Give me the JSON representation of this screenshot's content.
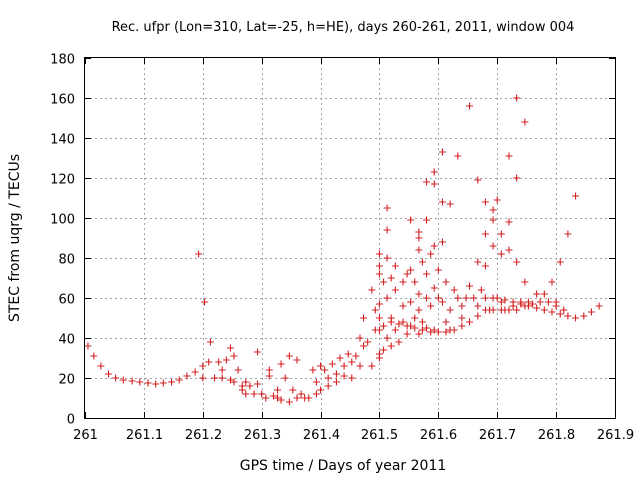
{
  "chart_data": {
    "type": "scatter",
    "title": "Rec. ufpr (Lon=310, Lat=-25, h=HE), days 260-261, 2011, window 004",
    "xlabel": "GPS time / Days of year 2011",
    "ylabel": "STEC from uqrg / TECUs",
    "xlim": [
      261,
      261.9
    ],
    "ylim": [
      0,
      180
    ],
    "xticks": [
      261,
      261.1,
      261.2,
      261.3,
      261.4,
      261.5,
      261.6,
      261.7,
      261.8,
      261.9
    ],
    "xtick_labels": [
      "261",
      "261.1",
      "261.2",
      "261.3",
      "261.4",
      "261.5",
      "261.6",
      "261.7",
      "261.8",
      "261.9"
    ],
    "yticks": [
      0,
      20,
      40,
      60,
      80,
      100,
      120,
      140,
      160,
      180
    ],
    "ytick_labels": [
      "0",
      "20",
      "40",
      "60",
      "80",
      "100",
      "120",
      "140",
      "160",
      "180"
    ],
    "grid": true,
    "marker": "+",
    "color": "#d42020",
    "points": [
      [
        261.005,
        36
      ],
      [
        261.015,
        31
      ],
      [
        261.027,
        26
      ],
      [
        261.04,
        22
      ],
      [
        261.052,
        20
      ],
      [
        261.065,
        19
      ],
      [
        261.08,
        18.5
      ],
      [
        261.093,
        18
      ],
      [
        261.107,
        17.5
      ],
      [
        261.12,
        17
      ],
      [
        261.133,
        17.5
      ],
      [
        261.147,
        18
      ],
      [
        261.16,
        19
      ],
      [
        261.173,
        21
      ],
      [
        261.187,
        23
      ],
      [
        261.193,
        82
      ],
      [
        261.203,
        58
      ],
      [
        261.2,
        26
      ],
      [
        261.2,
        20
      ],
      [
        261.21,
        28
      ],
      [
        261.213,
        38
      ],
      [
        261.22,
        20
      ],
      [
        261.227,
        28
      ],
      [
        261.233,
        24
      ],
      [
        261.233,
        20
      ],
      [
        261.24,
        29
      ],
      [
        261.247,
        35
      ],
      [
        261.247,
        19
      ],
      [
        261.253,
        31
      ],
      [
        261.253,
        18
      ],
      [
        261.26,
        24
      ],
      [
        261.267,
        16
      ],
      [
        261.267,
        14
      ],
      [
        261.273,
        18
      ],
      [
        261.273,
        12
      ],
      [
        261.28,
        16
      ],
      [
        261.287,
        12
      ],
      [
        261.293,
        33
      ],
      [
        261.293,
        17
      ],
      [
        261.3,
        12
      ],
      [
        261.307,
        10
      ],
      [
        261.313,
        24
      ],
      [
        261.313,
        21
      ],
      [
        261.32,
        11
      ],
      [
        261.327,
        14
      ],
      [
        261.327,
        10
      ],
      [
        261.333,
        27
      ],
      [
        261.333,
        9
      ],
      [
        261.34,
        20
      ],
      [
        261.347,
        31
      ],
      [
        261.347,
        8
      ],
      [
        261.353,
        14
      ],
      [
        261.36,
        29
      ],
      [
        261.36,
        10
      ],
      [
        261.367,
        12
      ],
      [
        261.373,
        10
      ],
      [
        261.38,
        10
      ],
      [
        261.387,
        24
      ],
      [
        261.393,
        12
      ],
      [
        261.393,
        18
      ],
      [
        261.4,
        26
      ],
      [
        261.4,
        14
      ],
      [
        261.407,
        24
      ],
      [
        261.413,
        20
      ],
      [
        261.413,
        16
      ],
      [
        261.42,
        27
      ],
      [
        261.427,
        22
      ],
      [
        261.427,
        18
      ],
      [
        261.433,
        30
      ],
      [
        261.44,
        26
      ],
      [
        261.44,
        21
      ],
      [
        261.447,
        32
      ],
      [
        261.453,
        28
      ],
      [
        261.453,
        20
      ],
      [
        261.46,
        31
      ],
      [
        261.467,
        40
      ],
      [
        261.467,
        26
      ],
      [
        261.473,
        50
      ],
      [
        261.473,
        36
      ],
      [
        261.48,
        38
      ],
      [
        261.487,
        26
      ],
      [
        261.487,
        64
      ],
      [
        261.493,
        54
      ],
      [
        261.493,
        44
      ],
      [
        261.5,
        82
      ],
      [
        261.5,
        76
      ],
      [
        261.5,
        72
      ],
      [
        261.5,
        57
      ],
      [
        261.5,
        50
      ],
      [
        261.5,
        44
      ],
      [
        261.5,
        32
      ],
      [
        261.5,
        30
      ],
      [
        261.507,
        68
      ],
      [
        261.507,
        46
      ],
      [
        261.507,
        34
      ],
      [
        261.513,
        105
      ],
      [
        261.513,
        94
      ],
      [
        261.513,
        80
      ],
      [
        261.513,
        60
      ],
      [
        261.513,
        40
      ],
      [
        261.52,
        70
      ],
      [
        261.52,
        50
      ],
      [
        261.52,
        36
      ],
      [
        261.527,
        76
      ],
      [
        261.527,
        64
      ],
      [
        261.527,
        44
      ],
      [
        261.533,
        38
      ],
      [
        261.54,
        68
      ],
      [
        261.54,
        56
      ],
      [
        261.54,
        48
      ],
      [
        261.547,
        72
      ],
      [
        261.547,
        42
      ],
      [
        261.553,
        99
      ],
      [
        261.553,
        74
      ],
      [
        261.553,
        58
      ],
      [
        261.553,
        46
      ],
      [
        261.56,
        68
      ],
      [
        261.56,
        50
      ],
      [
        261.567,
        93
      ],
      [
        261.567,
        90
      ],
      [
        261.567,
        84
      ],
      [
        261.567,
        62
      ],
      [
        261.567,
        54
      ],
      [
        261.567,
        42
      ],
      [
        261.573,
        78
      ],
      [
        261.573,
        48
      ],
      [
        261.58,
        118
      ],
      [
        261.58,
        99
      ],
      [
        261.58,
        72
      ],
      [
        261.58,
        60
      ],
      [
        261.58,
        45
      ],
      [
        261.587,
        82
      ],
      [
        261.587,
        56
      ],
      [
        261.593,
        123
      ],
      [
        261.593,
        117
      ],
      [
        261.593,
        86
      ],
      [
        261.593,
        65
      ],
      [
        261.593,
        44
      ],
      [
        261.6,
        74
      ],
      [
        261.6,
        60
      ],
      [
        261.607,
        133
      ],
      [
        261.607,
        108
      ],
      [
        261.607,
        88
      ],
      [
        261.607,
        58
      ],
      [
        261.613,
        68
      ],
      [
        261.613,
        48
      ],
      [
        261.62,
        107
      ],
      [
        261.62,
        54
      ],
      [
        261.62,
        44
      ],
      [
        261.627,
        64
      ],
      [
        261.633,
        131
      ],
      [
        261.633,
        60
      ],
      [
        261.64,
        56
      ],
      [
        261.64,
        50
      ],
      [
        261.647,
        60
      ],
      [
        261.653,
        156
      ],
      [
        261.653,
        66
      ],
      [
        261.66,
        60
      ],
      [
        261.667,
        119
      ],
      [
        261.667,
        78
      ],
      [
        261.667,
        56
      ],
      [
        261.673,
        64
      ],
      [
        261.68,
        108
      ],
      [
        261.68,
        92
      ],
      [
        261.68,
        76
      ],
      [
        261.68,
        60
      ],
      [
        261.687,
        54
      ],
      [
        261.693,
        104
      ],
      [
        261.693,
        99
      ],
      [
        261.693,
        86
      ],
      [
        261.693,
        60
      ],
      [
        261.7,
        109
      ],
      [
        261.707,
        92
      ],
      [
        261.707,
        82
      ],
      [
        261.707,
        58
      ],
      [
        261.713,
        54
      ],
      [
        261.72,
        131
      ],
      [
        261.72,
        98
      ],
      [
        261.72,
        84
      ],
      [
        261.727,
        56
      ],
      [
        261.733,
        160
      ],
      [
        261.733,
        120
      ],
      [
        261.733,
        78
      ],
      [
        261.74,
        58
      ],
      [
        261.747,
        148
      ],
      [
        261.747,
        68
      ],
      [
        261.753,
        58
      ],
      [
        261.767,
        62
      ],
      [
        261.78,
        62
      ],
      [
        261.793,
        68
      ],
      [
        261.8,
        58
      ],
      [
        261.807,
        78
      ],
      [
        261.82,
        92
      ],
      [
        261.833,
        111
      ],
      [
        261.7,
        60
      ],
      [
        261.713,
        59
      ],
      [
        261.727,
        58
      ],
      [
        261.74,
        57
      ],
      [
        261.753,
        56
      ],
      [
        261.767,
        55
      ],
      [
        261.78,
        54
      ],
      [
        261.793,
        53
      ],
      [
        261.807,
        52
      ],
      [
        261.82,
        51
      ],
      [
        261.833,
        50
      ],
      [
        261.847,
        51
      ],
      [
        261.86,
        53
      ],
      [
        261.873,
        56
      ],
      [
        261.52,
        48
      ],
      [
        261.533,
        47
      ],
      [
        261.547,
        46
      ],
      [
        261.56,
        45
      ],
      [
        261.573,
        44
      ],
      [
        261.587,
        43
      ],
      [
        261.6,
        43
      ],
      [
        261.613,
        43
      ],
      [
        261.627,
        44
      ],
      [
        261.64,
        46
      ],
      [
        261.653,
        48
      ],
      [
        261.667,
        51
      ],
      [
        261.68,
        54
      ],
      [
        261.693,
        54
      ],
      [
        261.707,
        54
      ],
      [
        261.72,
        54
      ],
      [
        261.733,
        54
      ],
      [
        261.747,
        56
      ],
      [
        261.76,
        57
      ],
      [
        261.773,
        58
      ],
      [
        261.787,
        58
      ],
      [
        261.8,
        56
      ],
      [
        261.813,
        54
      ]
    ]
  }
}
